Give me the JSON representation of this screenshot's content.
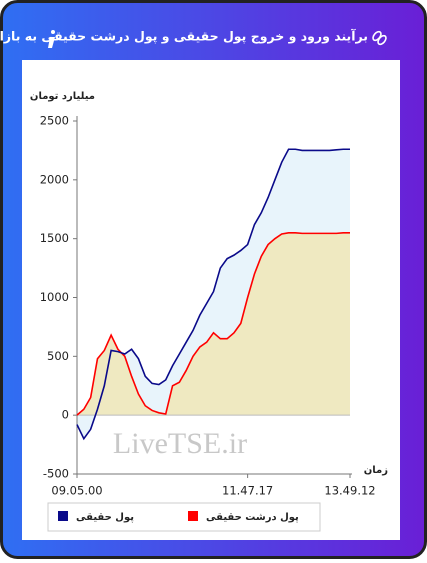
{
  "chart_data": {
    "type": "area-line",
    "title": "برآیند ورود و خروج پول حقیقی و پول درشت حقیقی به بازار",
    "y_label": "میلیارد تومان",
    "x_label": "زمان",
    "watermark": "LiveTSE.ir",
    "categories": [
      "09.05.00",
      null,
      null,
      null,
      null,
      null,
      null,
      null,
      null,
      null,
      null,
      null,
      null,
      null,
      null,
      null,
      null,
      null,
      null,
      null,
      null,
      null,
      null,
      null,
      null,
      "11.47.17",
      null,
      null,
      null,
      null,
      null,
      null,
      null,
      null,
      null,
      null,
      null,
      null,
      null,
      null,
      "13.49.12"
    ],
    "series": [
      {
        "name": "پول حقیقی",
        "color": "#0a0a8a",
        "fill": "#e8f4fb",
        "values": [
          -80,
          -200,
          -120,
          50,
          250,
          550,
          540,
          520,
          560,
          480,
          330,
          270,
          260,
          300,
          420,
          520,
          620,
          720,
          850,
          950,
          1050,
          1250,
          1330,
          1360,
          1400,
          1450,
          1620,
          1720,
          1850,
          2000,
          2150,
          2260,
          2260,
          2250,
          2250,
          2250,
          2250,
          2250,
          2255,
          2260,
          2260
        ]
      },
      {
        "name": "پول درشت حقیقی",
        "color": "#ff0000",
        "fill": "#efe9c1",
        "values": [
          0,
          50,
          150,
          480,
          550,
          680,
          560,
          500,
          330,
          180,
          80,
          40,
          20,
          10,
          250,
          280,
          380,
          500,
          580,
          620,
          700,
          650,
          650,
          700,
          780,
          1000,
          1200,
          1350,
          1450,
          1500,
          1540,
          1550,
          1550,
          1545,
          1545,
          1545,
          1545,
          1545,
          1545,
          1550,
          1550
        ]
      }
    ],
    "ylim": [
      -500,
      2500
    ],
    "yticks": [
      -500,
      0,
      500,
      1000,
      1500,
      2000,
      2500
    ]
  }
}
